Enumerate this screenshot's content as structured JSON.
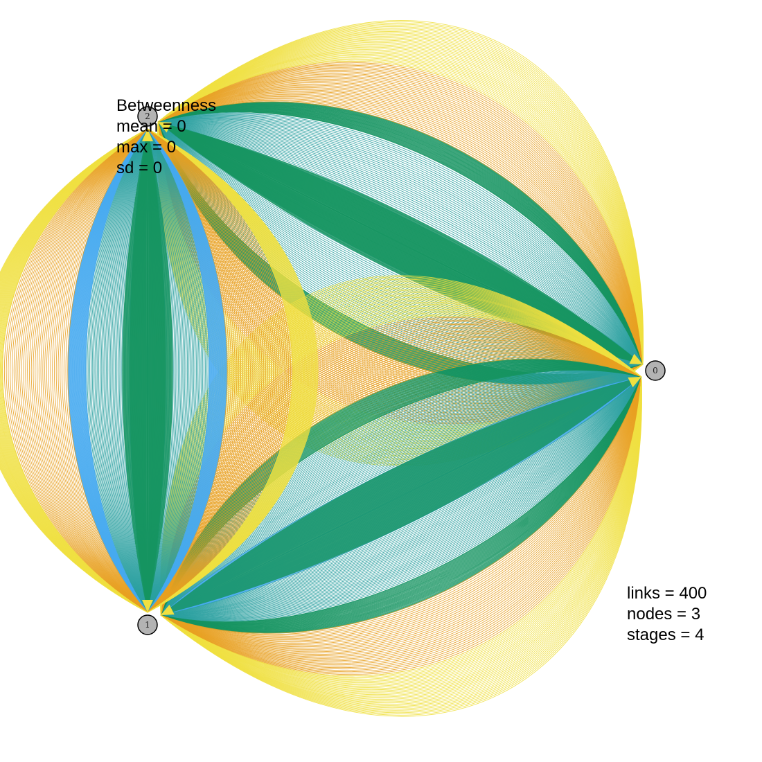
{
  "betweenness": {
    "title": "Betweenness",
    "mean": "mean = 0",
    "max": "max = 0",
    "sd": "sd = 0"
  },
  "summary": {
    "links": "links = 400",
    "nodes": "nodes = 3",
    "stages": "stages = 4"
  },
  "nodes": [
    {
      "id": "0",
      "label": "0"
    },
    {
      "id": "1",
      "label": "1"
    },
    {
      "id": "2",
      "label": "2"
    }
  ],
  "edge_groups": [
    {
      "from": "2",
      "to": "0"
    },
    {
      "from": "0",
      "to": "1"
    },
    {
      "from": "2",
      "to": "1"
    }
  ],
  "colors": {
    "node_fill": "#b3b3b3",
    "node_stroke": "#000000",
    "edge_outer": "#f0e040",
    "edge_orange": "#e8a020",
    "edge_teal": "#2aa0a0",
    "edge_green": "#159460",
    "edge_blue": "#46aaf0"
  }
}
